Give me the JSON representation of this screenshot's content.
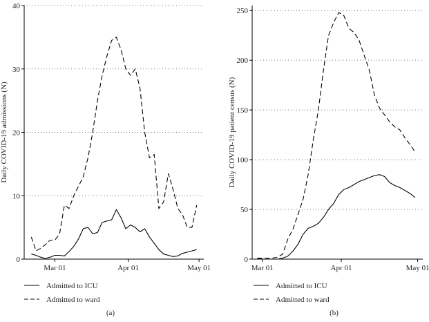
{
  "chart_data": [
    {
      "type": "line",
      "caption": "(a)",
      "y_label": "Daily COVID-19 admissions (N)",
      "x": [
        "Feb 20",
        "Feb 22",
        "Feb 24",
        "Feb 26",
        "Feb 28",
        "Mar 01",
        "Mar 03",
        "Mar 05",
        "Mar 07",
        "Mar 09",
        "Mar 11",
        "Mar 13",
        "Mar 15",
        "Mar 17",
        "Mar 19",
        "Mar 21",
        "Mar 23",
        "Mar 25",
        "Mar 27",
        "Mar 29",
        "Mar 31",
        "Apr 02",
        "Apr 04",
        "Apr 06",
        "Apr 08",
        "Apr 10",
        "Apr 12",
        "Apr 14",
        "Apr 16",
        "Apr 18",
        "Apr 20",
        "Apr 22",
        "Apr 24",
        "Apr 26",
        "Apr 28",
        "Apr 30"
      ],
      "series": [
        {
          "name": "Admitted to ICU",
          "color": "#000000",
          "style": "solid",
          "values": [
            0.8,
            0.6,
            0.3,
            0.1,
            0.3,
            0.6,
            0.6,
            0.5,
            1.2,
            2.0,
            3.2,
            4.8,
            5.0,
            4.0,
            4.2,
            5.8,
            6.0,
            6.2,
            7.8,
            6.5,
            4.8,
            5.4,
            5.0,
            4.3,
            4.8,
            3.5,
            2.5,
            1.5,
            0.8,
            0.6,
            0.4,
            0.5,
            0.9,
            1.1,
            1.3,
            1.5
          ]
        },
        {
          "name": "Admitted to ward",
          "color": "#000000",
          "style": "dashed",
          "values": [
            3.5,
            1.3,
            1.7,
            2.3,
            3.0,
            3.0,
            4.0,
            8.5,
            8.0,
            10,
            11.5,
            13,
            16,
            20,
            25,
            29,
            32,
            34.5,
            35,
            33,
            30,
            29,
            30,
            27,
            20,
            16,
            16.5,
            8,
            9,
            13.5,
            11,
            8,
            7,
            5,
            5,
            8.5
          ]
        }
      ],
      "xlim": [
        "Feb 17",
        "May 03"
      ],
      "xticks": [
        "Mar 01",
        "Apr 01",
        "May 01"
      ],
      "ylim": [
        0,
        40
      ],
      "yticks": [
        0,
        10,
        20,
        30,
        40
      ],
      "grid": true
    },
    {
      "type": "line",
      "caption": "(b)",
      "y_label": "Daily COVID-19 patient census (N)",
      "x": [
        "Feb 28",
        "Mar 01",
        "Mar 03",
        "Mar 05",
        "Mar 07",
        "Mar 09",
        "Mar 11",
        "Mar 13",
        "Mar 15",
        "Mar 17",
        "Mar 19",
        "Mar 21",
        "Mar 23",
        "Mar 25",
        "Mar 27",
        "Mar 29",
        "Mar 31",
        "Apr 02",
        "Apr 04",
        "Apr 06",
        "Apr 08",
        "Apr 10",
        "Apr 12",
        "Apr 14",
        "Apr 16",
        "Apr 18",
        "Apr 20",
        "Apr 22",
        "Apr 24",
        "Apr 26",
        "Apr 28",
        "Apr 30"
      ],
      "series": [
        {
          "name": "Admitted to ICU",
          "color": "#000000",
          "style": "solid",
          "values": [
            1,
            0,
            0,
            0,
            0,
            1,
            3,
            8,
            15,
            25,
            31,
            33,
            36,
            42,
            50,
            56,
            65,
            70,
            72,
            75,
            78,
            80,
            82,
            84,
            85,
            83,
            77,
            74,
            72,
            69,
            66,
            62
          ]
        },
        {
          "name": "Admitted to ward",
          "color": "#000000",
          "style": "dashed",
          "values": [
            1,
            1,
            1,
            1,
            2,
            5,
            20,
            30,
            45,
            60,
            85,
            120,
            150,
            190,
            225,
            238,
            248,
            245,
            232,
            228,
            220,
            205,
            190,
            165,
            152,
            145,
            138,
            133,
            130,
            122,
            115,
            108
          ]
        }
      ],
      "xlim": [
        "Feb 26",
        "May 03"
      ],
      "xticks": [
        "Mar 01",
        "Apr 01",
        "May 01"
      ],
      "ylim": [
        0,
        255
      ],
      "yticks": [
        0,
        50,
        100,
        150,
        200,
        250
      ],
      "grid": true
    }
  ]
}
